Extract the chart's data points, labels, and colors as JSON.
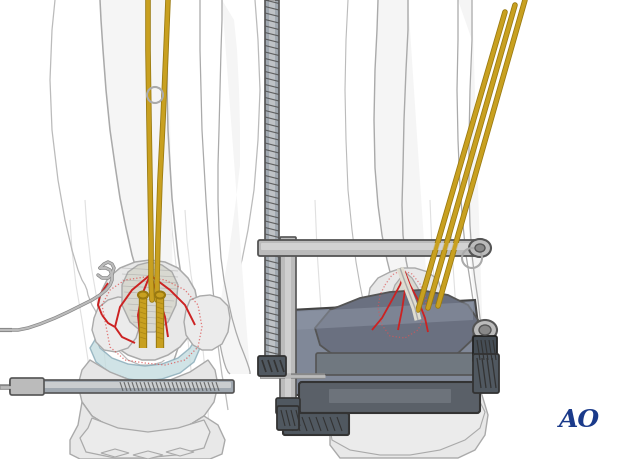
{
  "bg_color": "#ffffff",
  "ao_text": "AO",
  "ao_color": "#1a3a8a",
  "ao_fontsize": 18,
  "fig_width": 6.2,
  "fig_height": 4.59,
  "dpi": 100,
  "bone_color": "#eeeeee",
  "bone_color2": "#e4e4e4",
  "bone_outline": "#aaaaaa",
  "bone_outline2": "#bbbbbb",
  "cartilage_color": "#c5dde0",
  "fracture_red": "#cc2222",
  "fracture_dotted_red": "#dd5555",
  "kwire_color": "#c8a020",
  "kwire_outline": "#9a7a10",
  "metal_dark": "#555555",
  "metal_mid": "#888888",
  "metal_light": "#bbbbbb",
  "metal_highlight": "#dddddd",
  "metal_silver": "#a0a8b0",
  "tissue_outline": "#bbbbbb",
  "fragment_fill": "#d8d8d0",
  "dark_fixture": "#505860"
}
